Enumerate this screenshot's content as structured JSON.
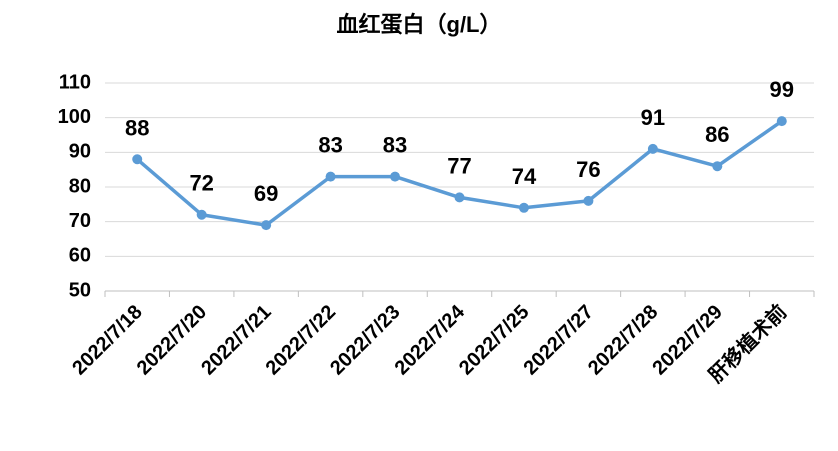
{
  "chart_data": {
    "type": "line",
    "title": "血红蛋白（g/L）",
    "categories": [
      "2022/7/18",
      "2022/7/20",
      "2022/7/21",
      "2022/7/22",
      "2022/7/23",
      "2022/7/24",
      "2022/7/25",
      "2022/7/27",
      "2022/7/28",
      "2022/7/29",
      "肝移植术前"
    ],
    "series": [
      {
        "color": "#5b9bd5",
        "values": [
          88,
          72,
          69,
          83,
          83,
          77,
          74,
          76,
          91,
          86,
          99
        ]
      }
    ],
    "ylim": [
      50,
      110
    ],
    "yticks": [
      50,
      60,
      70,
      80,
      90,
      100,
      110
    ],
    "grid": true
  }
}
